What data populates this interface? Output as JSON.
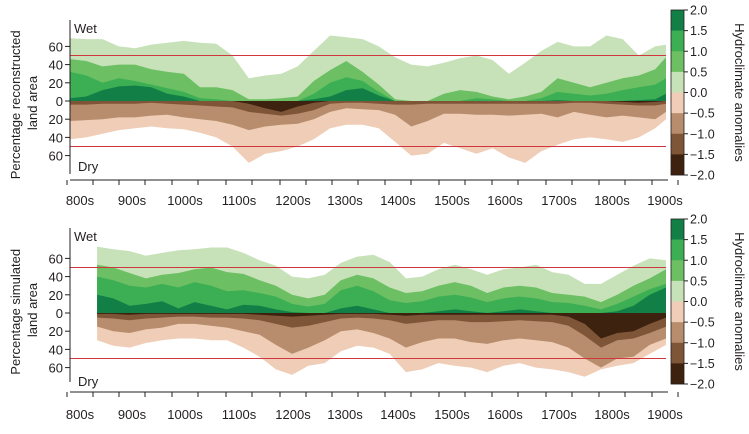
{
  "chart_data": [
    {
      "type": "area",
      "panel": "reconstructed",
      "ylabel": "Percentage reconstructed land area",
      "xlabel": "",
      "x_tick_labels": [
        "800s",
        "900s",
        "1000s",
        "1100s",
        "1200s",
        "1300s",
        "1400s",
        "1500s",
        "1600s",
        "1700s",
        "1800s",
        "1900s"
      ],
      "y_tick_labels": [
        "60",
        "40",
        "20",
        "0",
        "20",
        "40",
        "60"
      ],
      "y_ticks": [
        60,
        40,
        20,
        0,
        -20,
        -40,
        -60
      ],
      "xlim": [
        800,
        1900
      ],
      "ylim": [
        -70,
        72
      ],
      "wet_label": "Wet",
      "dry_label": "Dry",
      "reference_lines": [
        50,
        -50
      ],
      "x": [
        800,
        830,
        860,
        890,
        920,
        950,
        980,
        1010,
        1040,
        1070,
        1100,
        1130,
        1160,
        1190,
        1220,
        1250,
        1280,
        1310,
        1340,
        1370,
        1400,
        1430,
        1460,
        1490,
        1520,
        1550,
        1580,
        1610,
        1640,
        1670,
        1700,
        1730,
        1760,
        1790,
        1820,
        1850,
        1880,
        1900
      ],
      "wet_series": [
        {
          "name": "0.0 to 0.5",
          "values": [
            69,
            68,
            68,
            60,
            58,
            62,
            64,
            66,
            64,
            63,
            50,
            25,
            28,
            30,
            38,
            55,
            72,
            70,
            68,
            60,
            48,
            40,
            38,
            42,
            47,
            50,
            45,
            30,
            42,
            55,
            65,
            60,
            60,
            72,
            68,
            50,
            60,
            62
          ]
        },
        {
          "name": "0.5 to 1.0",
          "values": [
            46,
            44,
            38,
            40,
            40,
            35,
            32,
            30,
            15,
            15,
            12,
            2,
            2,
            3,
            5,
            22,
            34,
            44,
            32,
            18,
            2,
            0,
            0,
            8,
            12,
            10,
            5,
            2,
            5,
            10,
            25,
            20,
            15,
            20,
            25,
            28,
            35,
            48
          ]
        },
        {
          "name": "1.0 to 1.5",
          "values": [
            32,
            28,
            20,
            25,
            22,
            18,
            14,
            10,
            3,
            2,
            0,
            0,
            0,
            0,
            0,
            8,
            20,
            26,
            22,
            10,
            0,
            0,
            0,
            0,
            0,
            3,
            2,
            0,
            0,
            3,
            10,
            8,
            6,
            8,
            12,
            15,
            18,
            25
          ]
        },
        {
          "name": "1.5 to 2.0",
          "values": [
            3,
            5,
            12,
            16,
            17,
            15,
            8,
            5,
            0,
            0,
            0,
            0,
            0,
            0,
            0,
            2,
            5,
            12,
            14,
            6,
            0,
            0,
            0,
            0,
            0,
            0,
            0,
            0,
            0,
            0,
            1,
            0,
            0,
            0,
            0,
            1,
            2,
            8
          ]
        }
      ],
      "dry_series": [
        {
          "name": "0.0 to -0.5",
          "values": [
            -42,
            -40,
            -36,
            -32,
            -30,
            -28,
            -30,
            -31,
            -35,
            -40,
            -50,
            -68,
            -58,
            -55,
            -50,
            -42,
            -30,
            -26,
            -26,
            -30,
            -45,
            -60,
            -58,
            -46,
            -52,
            -58,
            -52,
            -62,
            -68,
            -55,
            -48,
            -42,
            -40,
            -42,
            -45,
            -40,
            -30,
            -20
          ]
        },
        {
          "name": "-0.5 to -1.0",
          "values": [
            -22,
            -21,
            -20,
            -18,
            -18,
            -16,
            -15,
            -18,
            -20,
            -22,
            -26,
            -32,
            -28,
            -26,
            -25,
            -20,
            -12,
            -8,
            -9,
            -10,
            -15,
            -28,
            -22,
            -14,
            -14,
            -15,
            -15,
            -16,
            -15,
            -14,
            -18,
            -12,
            -15,
            -18,
            -16,
            -18,
            -20,
            -12
          ]
        },
        {
          "name": "-1.0 to -1.5",
          "values": [
            -4,
            -4,
            -3,
            -3,
            -3,
            -2,
            -3,
            -4,
            -5,
            -6,
            -7,
            -12,
            -14,
            -16,
            -14,
            -10,
            -3,
            -2,
            -2,
            -3,
            -4,
            -4,
            -3,
            -3,
            -3,
            -3,
            -3,
            -3,
            -3,
            -3,
            -3,
            -2,
            -2,
            -3,
            -4,
            -5,
            -5,
            -3
          ]
        },
        {
          "name": "-1.5 to -2.0",
          "values": [
            0,
            0,
            0,
            0,
            0,
            0,
            0,
            0,
            0,
            0,
            0,
            -3,
            -8,
            -12,
            -6,
            -2,
            0,
            0,
            0,
            0,
            0,
            0,
            0,
            0,
            0,
            0,
            0,
            0,
            0,
            0,
            0,
            0,
            0,
            0,
            -1,
            -2,
            -1,
            0
          ]
        }
      ]
    },
    {
      "type": "area",
      "panel": "simulated",
      "ylabel": "Percentage simulated land area",
      "xlabel": "",
      "x_tick_labels": [
        "800s",
        "900s",
        "1000s",
        "1100s",
        "1200s",
        "1300s",
        "1400s",
        "1500s",
        "1600s",
        "1700s",
        "1800s",
        "1900s"
      ],
      "y_tick_labels": [
        "60",
        "40",
        "20",
        "0",
        "20",
        "40",
        "60"
      ],
      "y_ticks": [
        60,
        40,
        20,
        0,
        -20,
        -40,
        -60
      ],
      "xlim": [
        800,
        1900
      ],
      "ylim": [
        -70,
        72
      ],
      "wet_label": "Wet",
      "dry_label": "Dry",
      "reference_lines": [
        50,
        -50
      ],
      "x": [
        850,
        880,
        910,
        940,
        970,
        1000,
        1030,
        1060,
        1090,
        1120,
        1150,
        1180,
        1210,
        1240,
        1270,
        1300,
        1330,
        1360,
        1390,
        1420,
        1450,
        1480,
        1510,
        1540,
        1570,
        1600,
        1630,
        1660,
        1690,
        1720,
        1750,
        1780,
        1810,
        1840,
        1870,
        1900
      ],
      "wet_series": [
        {
          "name": "0.0 to 0.5",
          "values": [
            73,
            70,
            68,
            63,
            66,
            69,
            70,
            72,
            72,
            66,
            58,
            52,
            40,
            38,
            42,
            55,
            62,
            64,
            56,
            38,
            40,
            48,
            53,
            48,
            42,
            48,
            50,
            53,
            45,
            42,
            32,
            32,
            42,
            52,
            60,
            58
          ]
        },
        {
          "name": "0.5 to 1.0",
          "values": [
            53,
            50,
            44,
            38,
            42,
            44,
            48,
            50,
            45,
            43,
            36,
            30,
            20,
            16,
            20,
            36,
            42,
            38,
            28,
            22,
            24,
            30,
            34,
            30,
            22,
            28,
            30,
            28,
            22,
            20,
            18,
            12,
            20,
            30,
            38,
            48
          ]
        },
        {
          "name": "1.0 to 1.5",
          "values": [
            40,
            36,
            30,
            28,
            32,
            28,
            34,
            30,
            24,
            25,
            22,
            18,
            10,
            7,
            10,
            25,
            30,
            24,
            14,
            11,
            13,
            18,
            20,
            17,
            12,
            16,
            18,
            16,
            12,
            11,
            8,
            4,
            10,
            18,
            26,
            32
          ]
        },
        {
          "name": "1.5 to 2.0",
          "values": [
            20,
            16,
            8,
            10,
            13,
            5,
            12,
            8,
            4,
            9,
            8,
            4,
            1,
            0,
            0,
            5,
            8,
            4,
            0,
            0,
            0,
            2,
            4,
            2,
            0,
            2,
            4,
            2,
            0,
            0,
            0,
            0,
            2,
            8,
            20,
            28
          ]
        }
      ],
      "dry_series": [
        {
          "name": "0.0 to -0.5",
          "values": [
            -30,
            -36,
            -38,
            -33,
            -30,
            -28,
            -28,
            -30,
            -30,
            -38,
            -48,
            -62,
            -68,
            -58,
            -55,
            -42,
            -36,
            -38,
            -45,
            -65,
            -62,
            -55,
            -58,
            -60,
            -65,
            -58,
            -55,
            -60,
            -62,
            -65,
            -70,
            -62,
            -58,
            -55,
            -45,
            -35
          ]
        },
        {
          "name": "-0.5 to -1.0",
          "values": [
            -15,
            -20,
            -22,
            -18,
            -16,
            -12,
            -12,
            -14,
            -16,
            -20,
            -24,
            -35,
            -45,
            -38,
            -30,
            -20,
            -18,
            -22,
            -28,
            -38,
            -32,
            -28,
            -28,
            -32,
            -34,
            -30,
            -28,
            -30,
            -32,
            -38,
            -50,
            -60,
            -50,
            -48,
            -35,
            -28
          ]
        },
        {
          "name": "-1.0 to -1.5",
          "values": [
            -5,
            -6,
            -8,
            -6,
            -5,
            -4,
            -4,
            -5,
            -5,
            -6,
            -8,
            -12,
            -16,
            -14,
            -10,
            -6,
            -5,
            -6,
            -8,
            -12,
            -10,
            -8,
            -8,
            -10,
            -10,
            -9,
            -8,
            -9,
            -10,
            -14,
            -25,
            -38,
            -30,
            -28,
            -22,
            -15
          ]
        },
        {
          "name": "-1.5 to -2.0",
          "values": [
            -1,
            -1,
            -2,
            -1,
            -1,
            -1,
            -1,
            -1,
            -1,
            -1,
            -2,
            -3,
            -4,
            -3,
            -2,
            -1,
            -1,
            -1,
            -2,
            -3,
            -2,
            -2,
            -2,
            -2,
            -2,
            -2,
            -2,
            -2,
            -2,
            -4,
            -12,
            -28,
            -22,
            -20,
            -12,
            -5
          ]
        }
      ]
    }
  ],
  "colorbar": {
    "title": "Hydroclimate anomalies",
    "tick_labels": [
      "2.0",
      "1.5",
      "1.0",
      "0.5",
      "0.0",
      "−0.5",
      "−1.0",
      "−1.5",
      "−2.0"
    ],
    "colors": [
      "#128046",
      "#3cae54",
      "#6cbf62",
      "#c7e2b9",
      "#efcdb6",
      "#b88d6d",
      "#7f5538",
      "#3d220f"
    ]
  },
  "colors": {
    "reference_line": "#d0363d",
    "axis": "#231f20"
  }
}
